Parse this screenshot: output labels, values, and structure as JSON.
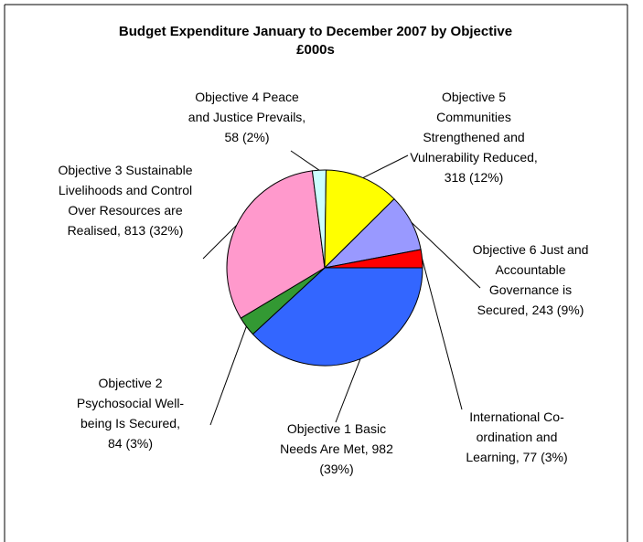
{
  "chart_data": {
    "type": "pie",
    "title": "Budget Expenditure January to December 2007 by Objective",
    "subtitle": "£000s",
    "categories": [
      "Objective 1 Basic Needs Are Met,",
      "Objective 2 Psychosocial Well-being Is Secured,",
      "Objective 3 Sustainable Livelihoods and Control Over Resources are Realised,",
      "Objective 4 Peace and Justice Prevails,",
      "Objective 5 Communities Strengthened and Vulnerability Reduced,",
      "Objective 6 Just and Accountable Governance is Secured,",
      "International Co-ordination and Learning,"
    ],
    "values": [
      982,
      84,
      813,
      58,
      318,
      243,
      77
    ],
    "value_labels": [
      "982 (39%)",
      "84 (3%)",
      "813 (32%)",
      "58 (2%)",
      "318 (12%)",
      "243 (9%)",
      "77 (3%)"
    ],
    "colors": [
      "#3366ff",
      "#339933",
      "#ff99cc",
      "#ccffff",
      "#ffff00",
      "#9999ff",
      "#ff0000"
    ]
  }
}
